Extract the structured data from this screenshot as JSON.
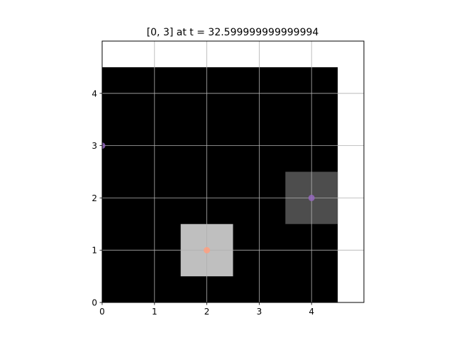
{
  "chart_data": {
    "type": "heatmap",
    "title": "[0, 3] at t = 32.599999999999994",
    "xlim": [
      0,
      5
    ],
    "ylim": [
      0,
      5
    ],
    "xticks": [
      "0",
      "1",
      "2",
      "3",
      "4"
    ],
    "yticks": [
      "0",
      "1",
      "2",
      "3",
      "4"
    ],
    "grid": true,
    "background_region": {
      "x": [
        -0.5,
        4.5
      ],
      "y": [
        -0.5,
        4.5
      ],
      "color": "#000000"
    },
    "cells": [
      {
        "x": 2,
        "y": 1,
        "color": "#bfbfbf"
      },
      {
        "x": 4,
        "y": 2,
        "color": "#4d4d4d"
      }
    ],
    "points": [
      {
        "x": 0,
        "y": 3,
        "color": "#9467bd"
      },
      {
        "x": 4,
        "y": 2,
        "color": "#9467bd"
      },
      {
        "x": 2,
        "y": 1,
        "color": "#ff9f7f"
      }
    ]
  }
}
